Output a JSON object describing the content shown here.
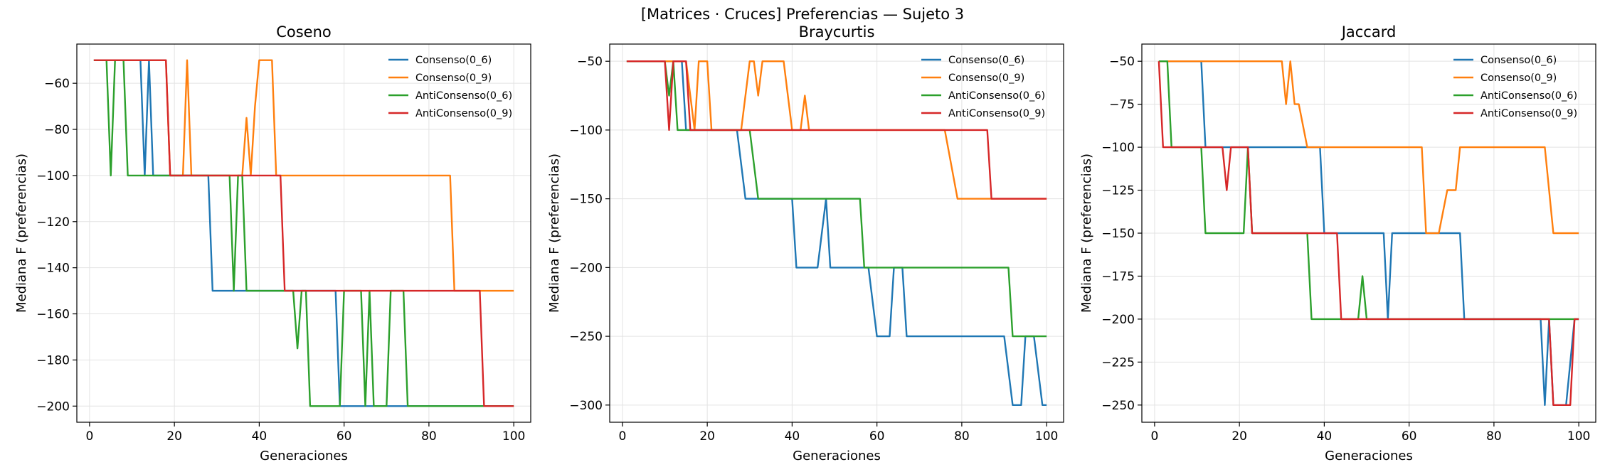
{
  "figure_title": "[Matrices · Cruces] Preferencias — Sujeto 3",
  "colors": {
    "Consenso(0_6)": "#1f77b4",
    "Consenso(0_9)": "#ff7f0e",
    "AntiConsenso(0_6)": "#2ca02c",
    "AntiConsenso(0_9)": "#d62728"
  },
  "chart_data": [
    {
      "type": "line",
      "title": "Coseno",
      "xlabel": "Generaciones",
      "ylabel": "Mediana F (preferencias)",
      "xlim": [
        -3,
        104
      ],
      "ylim": [
        -207,
        -43
      ],
      "xticks": [
        0,
        20,
        40,
        60,
        80,
        100
      ],
      "yticks": [
        -200,
        -180,
        -160,
        -140,
        -120,
        -100,
        -80,
        -60
      ],
      "grid": true,
      "legend": "top-right",
      "series": [
        {
          "name": "Consenso(0_6)",
          "points": [
            [
              1,
              -50
            ],
            [
              12,
              -50
            ],
            [
              13,
              -100
            ],
            [
              14,
              -50
            ],
            [
              15,
              -100
            ],
            [
              28,
              -100
            ],
            [
              29,
              -150
            ],
            [
              58,
              -150
            ],
            [
              59,
              -200
            ],
            [
              100,
              -200
            ]
          ]
        },
        {
          "name": "Consenso(0_9)",
          "points": [
            [
              1,
              -50
            ],
            [
              18,
              -50
            ],
            [
              19,
              -100
            ],
            [
              22,
              -100
            ],
            [
              23,
              -50
            ],
            [
              24,
              -100
            ],
            [
              36,
              -100
            ],
            [
              37,
              -75
            ],
            [
              38,
              -100
            ],
            [
              39,
              -70
            ],
            [
              40,
              -50
            ],
            [
              43,
              -50
            ],
            [
              44,
              -100
            ],
            [
              85,
              -100
            ],
            [
              86,
              -150
            ],
            [
              100,
              -150
            ]
          ]
        },
        {
          "name": "AntiConsenso(0_6)",
          "points": [
            [
              1,
              -50
            ],
            [
              4,
              -50
            ],
            [
              5,
              -100
            ],
            [
              6,
              -50
            ],
            [
              8,
              -50
            ],
            [
              9,
              -100
            ],
            [
              33,
              -100
            ],
            [
              34,
              -150
            ],
            [
              35,
              -100
            ],
            [
              36,
              -100
            ],
            [
              37,
              -150
            ],
            [
              48,
              -150
            ],
            [
              49,
              -175
            ],
            [
              50,
              -150
            ],
            [
              51,
              -150
            ],
            [
              52,
              -200
            ],
            [
              59,
              -200
            ],
            [
              60,
              -150
            ],
            [
              64,
              -150
            ],
            [
              65,
              -200
            ],
            [
              66,
              -150
            ],
            [
              67,
              -200
            ],
            [
              70,
              -200
            ],
            [
              71,
              -150
            ],
            [
              74,
              -150
            ],
            [
              75,
              -200
            ],
            [
              100,
              -200
            ]
          ]
        },
        {
          "name": "AntiConsenso(0_9)",
          "points": [
            [
              1,
              -50
            ],
            [
              18,
              -50
            ],
            [
              19,
              -100
            ],
            [
              45,
              -100
            ],
            [
              46,
              -150
            ],
            [
              92,
              -150
            ],
            [
              93,
              -200
            ],
            [
              100,
              -200
            ]
          ]
        }
      ]
    },
    {
      "type": "line",
      "title": "Braycurtis",
      "xlabel": "Generaciones",
      "ylabel": "Mediana F (preferencias)",
      "xlim": [
        -3,
        104
      ],
      "ylim": [
        -312.5,
        -37.5
      ],
      "xticks": [
        0,
        20,
        40,
        60,
        80,
        100
      ],
      "yticks": [
        -300,
        -250,
        -200,
        -150,
        -100,
        -50
      ],
      "grid": true,
      "legend": "top-right",
      "series": [
        {
          "name": "Consenso(0_6)",
          "points": [
            [
              1,
              -50
            ],
            [
              14,
              -50
            ],
            [
              15,
              -100
            ],
            [
              27,
              -100
            ],
            [
              29,
              -150
            ],
            [
              40,
              -150
            ],
            [
              41,
              -200
            ],
            [
              46,
              -200
            ],
            [
              48,
              -150
            ],
            [
              49,
              -200
            ],
            [
              58,
              -200
            ],
            [
              60,
              -250
            ],
            [
              63,
              -250
            ],
            [
              64,
              -200
            ],
            [
              66,
              -200
            ],
            [
              67,
              -250
            ],
            [
              90,
              -250
            ],
            [
              92,
              -300
            ],
            [
              94,
              -300
            ],
            [
              95,
              -250
            ],
            [
              97,
              -250
            ],
            [
              99,
              -300
            ],
            [
              100,
              -300
            ]
          ]
        },
        {
          "name": "Consenso(0_9)",
          "points": [
            [
              1,
              -50
            ],
            [
              15,
              -50
            ],
            [
              17,
              -100
            ],
            [
              18,
              -50
            ],
            [
              20,
              -50
            ],
            [
              21,
              -100
            ],
            [
              28,
              -100
            ],
            [
              30,
              -50
            ],
            [
              31,
              -50
            ],
            [
              32,
              -75
            ],
            [
              33,
              -50
            ],
            [
              35,
              -50
            ],
            [
              36,
              -50
            ],
            [
              38,
              -50
            ],
            [
              40,
              -100
            ],
            [
              42,
              -100
            ],
            [
              43,
              -75
            ],
            [
              44,
              -100
            ],
            [
              76,
              -100
            ],
            [
              79,
              -150
            ],
            [
              100,
              -150
            ]
          ]
        },
        {
          "name": "AntiConsenso(0_6)",
          "points": [
            [
              1,
              -50
            ],
            [
              10,
              -50
            ],
            [
              11,
              -75
            ],
            [
              12,
              -50
            ],
            [
              13,
              -100
            ],
            [
              30,
              -100
            ],
            [
              32,
              -150
            ],
            [
              56,
              -150
            ],
            [
              57,
              -200
            ],
            [
              91,
              -200
            ],
            [
              92,
              -250
            ],
            [
              100,
              -250
            ]
          ]
        },
        {
          "name": "AntiConsenso(0_9)",
          "points": [
            [
              1,
              -50
            ],
            [
              10,
              -50
            ],
            [
              11,
              -100
            ],
            [
              12,
              -50
            ],
            [
              15,
              -50
            ],
            [
              16,
              -100
            ],
            [
              86,
              -100
            ],
            [
              87,
              -150
            ],
            [
              100,
              -150
            ]
          ]
        }
      ]
    },
    {
      "type": "line",
      "title": "Jaccard",
      "xlabel": "Generaciones",
      "ylabel": "Mediana F (preferencias)",
      "xlim": [
        -3,
        104
      ],
      "ylim": [
        -260,
        -40
      ],
      "xticks": [
        0,
        20,
        40,
        60,
        80,
        100
      ],
      "yticks": [
        -250,
        -225,
        -200,
        -175,
        -150,
        -125,
        -100,
        -75,
        -50
      ],
      "grid": true,
      "legend": "top-right",
      "series": [
        {
          "name": "Consenso(0_6)",
          "points": [
            [
              1,
              -50
            ],
            [
              11,
              -50
            ],
            [
              12,
              -100
            ],
            [
              39,
              -100
            ],
            [
              40,
              -150
            ],
            [
              54,
              -150
            ],
            [
              55,
              -200
            ],
            [
              56,
              -150
            ],
            [
              72,
              -150
            ],
            [
              73,
              -200
            ],
            [
              91,
              -200
            ],
            [
              92,
              -250
            ],
            [
              93,
              -200
            ],
            [
              94,
              -250
            ],
            [
              97,
              -250
            ],
            [
              99,
              -200
            ],
            [
              100,
              -200
            ]
          ]
        },
        {
          "name": "Consenso(0_9)",
          "points": [
            [
              1,
              -50
            ],
            [
              30,
              -50
            ],
            [
              31,
              -75
            ],
            [
              32,
              -50
            ],
            [
              33,
              -75
            ],
            [
              34,
              -75
            ],
            [
              36,
              -100
            ],
            [
              63,
              -100
            ],
            [
              64,
              -150
            ],
            [
              67,
              -150
            ],
            [
              69,
              -125
            ],
            [
              71,
              -125
            ],
            [
              72,
              -100
            ],
            [
              92,
              -100
            ],
            [
              94,
              -150
            ],
            [
              100,
              -150
            ]
          ]
        },
        {
          "name": "AntiConsenso(0_6)",
          "points": [
            [
              1,
              -50
            ],
            [
              3,
              -50
            ],
            [
              4,
              -100
            ],
            [
              11,
              -100
            ],
            [
              12,
              -150
            ],
            [
              21,
              -150
            ],
            [
              22,
              -100
            ],
            [
              23,
              -150
            ],
            [
              36,
              -150
            ],
            [
              37,
              -200
            ],
            [
              48,
              -200
            ],
            [
              49,
              -175
            ],
            [
              50,
              -200
            ],
            [
              100,
              -200
            ]
          ]
        },
        {
          "name": "AntiConsenso(0_9)",
          "points": [
            [
              1,
              -50
            ],
            [
              2,
              -100
            ],
            [
              16,
              -100
            ],
            [
              17,
              -125
            ],
            [
              18,
              -100
            ],
            [
              22,
              -100
            ],
            [
              23,
              -150
            ],
            [
              43,
              -150
            ],
            [
              44,
              -200
            ],
            [
              93,
              -200
            ],
            [
              94,
              -250
            ],
            [
              98,
              -250
            ],
            [
              99,
              -200
            ],
            [
              100,
              -200
            ]
          ]
        }
      ]
    }
  ]
}
